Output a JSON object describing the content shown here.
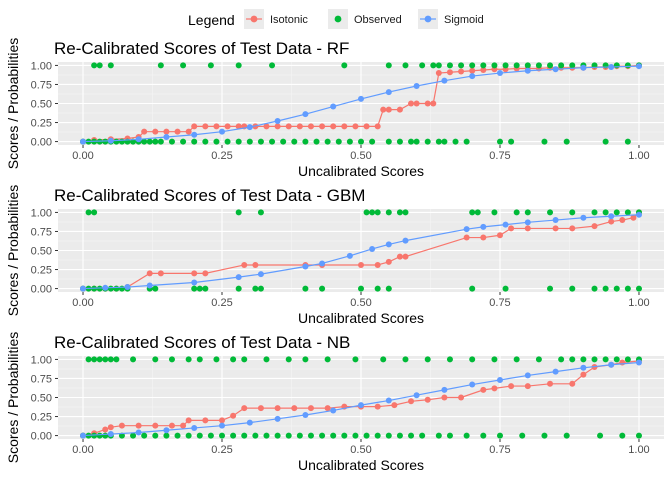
{
  "legend": {
    "title": "Legend",
    "position": "top",
    "items": [
      {
        "label": "Isotonic",
        "color": "#F8766D",
        "style": "line-point"
      },
      {
        "label": "Observed",
        "color": "#00BA38",
        "style": "point"
      },
      {
        "label": "Sigmoid",
        "color": "#619CFF",
        "style": "line-point"
      }
    ]
  },
  "chart_data": [
    {
      "type": "line",
      "title": "Re-Calibrated Scores of Test Data - RF",
      "xlabel": "Uncalibrated Scores",
      "ylabel": "Scores / Probabilities",
      "xlim": [
        0,
        1
      ],
      "ylim": [
        0,
        1
      ],
      "xticks": [
        "0.00",
        "0.25",
        "0.50",
        "0.75",
        "1.00"
      ],
      "yticks": [
        "0.00",
        "0.25",
        "0.50",
        "0.75",
        "1.00"
      ],
      "grid": true,
      "series": [
        {
          "name": "Isotonic",
          "color": "#F8766D",
          "x": [
            0.0,
            0.02,
            0.05,
            0.08,
            0.1,
            0.11,
            0.13,
            0.15,
            0.17,
            0.19,
            0.2,
            0.22,
            0.24,
            0.26,
            0.28,
            0.29,
            0.31,
            0.33,
            0.35,
            0.37,
            0.39,
            0.41,
            0.43,
            0.45,
            0.47,
            0.49,
            0.51,
            0.53,
            0.54,
            0.55,
            0.57,
            0.59,
            0.6,
            0.62,
            0.63,
            0.64,
            0.66,
            0.68,
            0.7,
            0.72,
            0.74,
            0.76,
            0.78,
            0.8,
            0.82,
            0.84,
            0.86,
            0.88,
            0.9,
            0.92,
            0.94,
            0.96,
            0.98,
            1.0
          ],
          "y": [
            0.0,
            0.02,
            0.03,
            0.04,
            0.06,
            0.13,
            0.13,
            0.13,
            0.13,
            0.13,
            0.2,
            0.2,
            0.2,
            0.2,
            0.2,
            0.2,
            0.2,
            0.2,
            0.2,
            0.2,
            0.2,
            0.2,
            0.2,
            0.2,
            0.2,
            0.2,
            0.2,
            0.2,
            0.42,
            0.42,
            0.42,
            0.5,
            0.5,
            0.5,
            0.5,
            0.9,
            0.91,
            0.92,
            0.93,
            0.94,
            0.95,
            0.95,
            0.96,
            0.96,
            0.96,
            0.97,
            0.97,
            0.97,
            0.97,
            0.98,
            0.98,
            0.99,
            0.99,
            1.0
          ]
        },
        {
          "name": "Observed",
          "color": "#00BA38",
          "x_at_1": [
            0.02,
            0.03,
            0.05,
            0.14,
            0.18,
            0.23,
            0.28,
            0.34,
            0.47,
            0.55,
            0.58,
            0.61,
            0.63,
            0.64,
            0.66,
            0.68,
            0.7,
            0.72,
            0.74,
            0.76,
            0.78,
            0.8,
            0.82,
            0.84,
            0.86,
            0.88,
            0.9,
            0.92,
            0.94,
            0.96,
            0.98,
            1.0
          ],
          "x_at_0": [
            0.0,
            0.01,
            0.02,
            0.03,
            0.04,
            0.05,
            0.06,
            0.07,
            0.08,
            0.09,
            0.1,
            0.11,
            0.12,
            0.13,
            0.14,
            0.16,
            0.18,
            0.2,
            0.22,
            0.24,
            0.26,
            0.28,
            0.3,
            0.32,
            0.34,
            0.36,
            0.38,
            0.4,
            0.42,
            0.44,
            0.46,
            0.48,
            0.5,
            0.52,
            0.55,
            0.57,
            0.59,
            0.6,
            0.62,
            0.64,
            0.65,
            0.67,
            0.69,
            0.75,
            0.77,
            0.83,
            0.87,
            0.94,
            0.98
          ]
        },
        {
          "name": "Sigmoid",
          "color": "#619CFF",
          "x": [
            0.0,
            0.05,
            0.1,
            0.15,
            0.2,
            0.25,
            0.3,
            0.35,
            0.4,
            0.45,
            0.5,
            0.55,
            0.6,
            0.65,
            0.7,
            0.75,
            0.8,
            0.85,
            0.9,
            0.95,
            1.0
          ],
          "y": [
            0.0,
            0.01,
            0.03,
            0.06,
            0.09,
            0.13,
            0.19,
            0.27,
            0.36,
            0.46,
            0.56,
            0.65,
            0.73,
            0.8,
            0.86,
            0.9,
            0.93,
            0.95,
            0.97,
            0.98,
            0.99
          ]
        }
      ]
    },
    {
      "type": "line",
      "title": "Re-Calibrated Scores of Test Data - GBM",
      "xlabel": "Uncalibrated Scores",
      "ylabel": "Scores / Probabilities",
      "xlim": [
        0,
        1
      ],
      "ylim": [
        0,
        1
      ],
      "xticks": [
        "0.00",
        "0.25",
        "0.50",
        "0.75",
        "1.00"
      ],
      "yticks": [
        "0.00",
        "0.25",
        "0.50",
        "0.75",
        "1.00"
      ],
      "grid": true,
      "series": [
        {
          "name": "Isotonic",
          "color": "#F8766D",
          "x": [
            0.0,
            0.02,
            0.04,
            0.06,
            0.08,
            0.12,
            0.14,
            0.2,
            0.22,
            0.29,
            0.31,
            0.4,
            0.43,
            0.5,
            0.53,
            0.55,
            0.57,
            0.58,
            0.69,
            0.72,
            0.75,
            0.77,
            0.8,
            0.85,
            0.88,
            0.92,
            0.95,
            0.97,
            0.99,
            1.0
          ],
          "y": [
            0.0,
            0.0,
            0.0,
            0.0,
            0.02,
            0.2,
            0.2,
            0.2,
            0.2,
            0.31,
            0.31,
            0.31,
            0.31,
            0.31,
            0.31,
            0.35,
            0.42,
            0.42,
            0.67,
            0.67,
            0.7,
            0.79,
            0.79,
            0.79,
            0.79,
            0.82,
            0.88,
            0.9,
            0.93,
            1.0
          ]
        },
        {
          "name": "Observed",
          "color": "#00BA38",
          "x_at_1": [
            0.01,
            0.02,
            0.28,
            0.32,
            0.51,
            0.52,
            0.53,
            0.55,
            0.57,
            0.58,
            0.7,
            0.71,
            0.74,
            0.78,
            0.8,
            0.84,
            0.88,
            0.92,
            0.94,
            0.96,
            0.98,
            1.0
          ],
          "x_at_0": [
            0.0,
            0.01,
            0.02,
            0.03,
            0.04,
            0.05,
            0.06,
            0.07,
            0.08,
            0.12,
            0.13,
            0.2,
            0.21,
            0.22,
            0.28,
            0.31,
            0.32,
            0.4,
            0.43,
            0.5,
            0.53,
            0.55,
            0.7,
            0.76,
            0.84,
            0.88,
            0.92,
            0.94,
            0.96,
            0.98,
            1.0
          ]
        },
        {
          "name": "Sigmoid",
          "color": "#619CFF",
          "x": [
            0.0,
            0.04,
            0.08,
            0.12,
            0.2,
            0.28,
            0.32,
            0.4,
            0.43,
            0.48,
            0.52,
            0.55,
            0.58,
            0.69,
            0.72,
            0.76,
            0.8,
            0.85,
            0.9,
            0.95,
            1.0
          ],
          "y": [
            0.0,
            0.01,
            0.02,
            0.04,
            0.08,
            0.15,
            0.19,
            0.29,
            0.33,
            0.43,
            0.52,
            0.58,
            0.63,
            0.78,
            0.81,
            0.84,
            0.87,
            0.9,
            0.93,
            0.95,
            0.97
          ]
        }
      ]
    },
    {
      "type": "line",
      "title": "Re-Calibrated Scores of Test Data - NB",
      "xlabel": "Uncalibrated Scores",
      "ylabel": "Scores / Probabilities",
      "xlim": [
        0,
        1
      ],
      "ylim": [
        0,
        1
      ],
      "xticks": [
        "0.00",
        "0.25",
        "0.50",
        "0.75",
        "1.00"
      ],
      "yticks": [
        "0.00",
        "0.25",
        "0.50",
        "0.75",
        "1.00"
      ],
      "grid": true,
      "series": [
        {
          "name": "Isotonic",
          "color": "#F8766D",
          "x": [
            0.0,
            0.02,
            0.04,
            0.05,
            0.07,
            0.1,
            0.13,
            0.16,
            0.18,
            0.19,
            0.22,
            0.25,
            0.27,
            0.29,
            0.32,
            0.35,
            0.38,
            0.41,
            0.44,
            0.47,
            0.5,
            0.53,
            0.56,
            0.59,
            0.62,
            0.65,
            0.68,
            0.72,
            0.74,
            0.77,
            0.8,
            0.84,
            0.88,
            0.9,
            0.92,
            0.95,
            0.97,
            1.0
          ],
          "y": [
            0.0,
            0.03,
            0.08,
            0.11,
            0.13,
            0.13,
            0.13,
            0.13,
            0.13,
            0.2,
            0.2,
            0.2,
            0.26,
            0.36,
            0.36,
            0.36,
            0.36,
            0.36,
            0.36,
            0.38,
            0.38,
            0.38,
            0.4,
            0.45,
            0.47,
            0.5,
            0.5,
            0.6,
            0.62,
            0.65,
            0.65,
            0.68,
            0.68,
            0.8,
            0.9,
            0.93,
            0.96,
            0.98
          ]
        },
        {
          "name": "Observed",
          "color": "#00BA38",
          "x_at_1": [
            0.01,
            0.02,
            0.03,
            0.04,
            0.05,
            0.06,
            0.09,
            0.13,
            0.16,
            0.19,
            0.21,
            0.24,
            0.27,
            0.29,
            0.33,
            0.37,
            0.4,
            0.44,
            0.49,
            0.54,
            0.58,
            0.62,
            0.66,
            0.7,
            0.74,
            0.78,
            0.82,
            0.86,
            0.88,
            0.9,
            0.92,
            0.94,
            0.96,
            0.98,
            1.0
          ],
          "x_at_0": [
            0.0,
            0.01,
            0.02,
            0.03,
            0.04,
            0.05,
            0.07,
            0.09,
            0.11,
            0.13,
            0.15,
            0.17,
            0.19,
            0.21,
            0.23,
            0.25,
            0.27,
            0.29,
            0.31,
            0.33,
            0.35,
            0.37,
            0.39,
            0.41,
            0.43,
            0.45,
            0.47,
            0.49,
            0.51,
            0.53,
            0.55,
            0.57,
            0.59,
            0.61,
            0.64,
            0.66,
            0.69,
            0.72,
            0.75,
            0.79,
            0.83,
            0.87,
            0.93,
            0.97,
            1.0
          ]
        },
        {
          "name": "Sigmoid",
          "color": "#619CFF",
          "x": [
            0.0,
            0.05,
            0.1,
            0.15,
            0.2,
            0.25,
            0.3,
            0.35,
            0.4,
            0.45,
            0.5,
            0.55,
            0.6,
            0.65,
            0.7,
            0.75,
            0.8,
            0.85,
            0.9,
            0.95,
            1.0
          ],
          "y": [
            0.0,
            0.02,
            0.04,
            0.07,
            0.1,
            0.13,
            0.17,
            0.22,
            0.27,
            0.33,
            0.4,
            0.46,
            0.53,
            0.6,
            0.67,
            0.73,
            0.79,
            0.84,
            0.89,
            0.93,
            0.96
          ]
        }
      ]
    }
  ]
}
